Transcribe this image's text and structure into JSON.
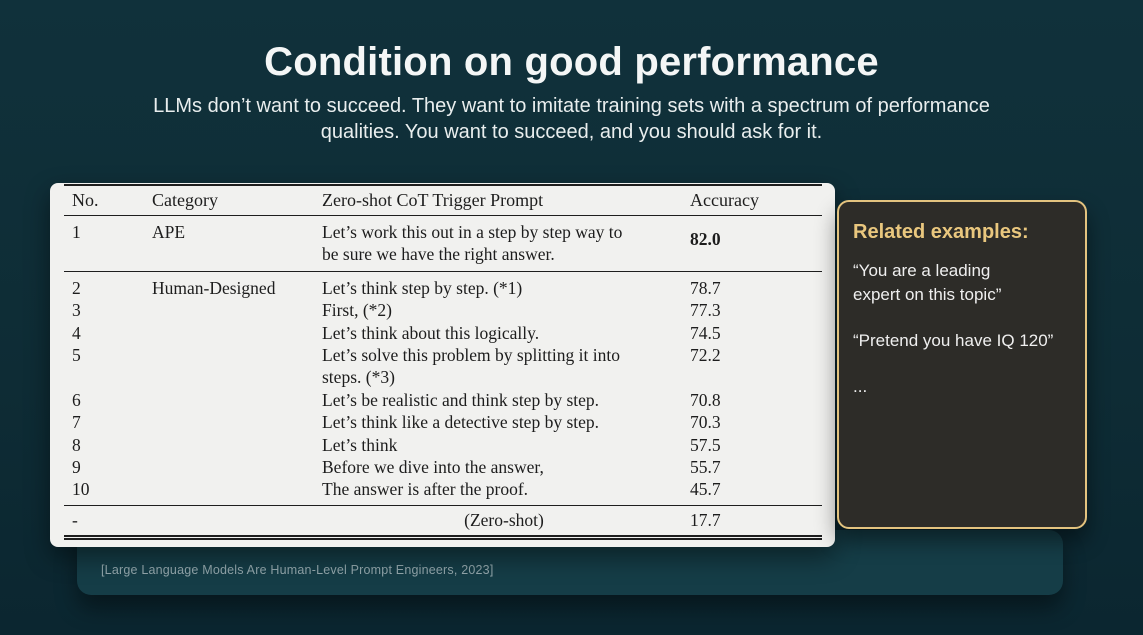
{
  "slide": {
    "title": "Condition on good performance",
    "subtitle": "LLMs don’t want to succeed. They want to imitate training sets with a spectrum of performance\nqualities. You want to succeed, and you should ask for it.",
    "citation": "[Large Language Models Are Human-Level Prompt Engineers, 2023]"
  },
  "table": {
    "headers": [
      "No.",
      "Category",
      "Zero-shot CoT Trigger Prompt",
      "Accuracy"
    ],
    "rows": [
      {
        "no": "1",
        "category": "APE",
        "prompt": "Let’s work this out in a step by step way to\nbe sure we have the right answer.",
        "accuracy": "82.0"
      },
      {
        "no": "2",
        "category": "Human-Designed",
        "prompt": "Let’s think step by step. (*1)",
        "accuracy": "78.7"
      },
      {
        "no": "3",
        "category": "",
        "prompt": "First, (*2)",
        "accuracy": "77.3"
      },
      {
        "no": "4",
        "category": "",
        "prompt": "Let’s think about this logically.",
        "accuracy": "74.5"
      },
      {
        "no": "5",
        "category": "",
        "prompt": "Let’s solve this problem by splitting it into\nsteps. (*3)",
        "accuracy": "72.2"
      },
      {
        "no": "6",
        "category": "",
        "prompt": "Let’s be realistic and think step by step.",
        "accuracy": "70.8"
      },
      {
        "no": "7",
        "category": "",
        "prompt": "Let’s think like a detective step by step.",
        "accuracy": "70.3"
      },
      {
        "no": "8",
        "category": "",
        "prompt": "Let’s think",
        "accuracy": "57.5"
      },
      {
        "no": "9",
        "category": "",
        "prompt": "Before we dive into the answer,",
        "accuracy": "55.7"
      },
      {
        "no": "10",
        "category": "",
        "prompt": "The answer is after the proof.",
        "accuracy": "45.7"
      },
      {
        "no": "-",
        "category": "",
        "prompt": "(Zero-shot)",
        "accuracy": "17.7"
      }
    ]
  },
  "sidebar": {
    "title": "Related examples:",
    "quote1": "“You are a leading\nexpert on this topic”",
    "quote2": "“Pretend you have IQ 120”",
    "ellipsis": "..."
  },
  "colors": {
    "background": "#0e2c35",
    "card": "#f1f1ef",
    "panel_bg": "#2d2c28",
    "panel_border": "#e3c37f",
    "accent_gold": "#e9c77e",
    "citation_bar": "#153d47",
    "citation_text": "#93a7ac"
  }
}
